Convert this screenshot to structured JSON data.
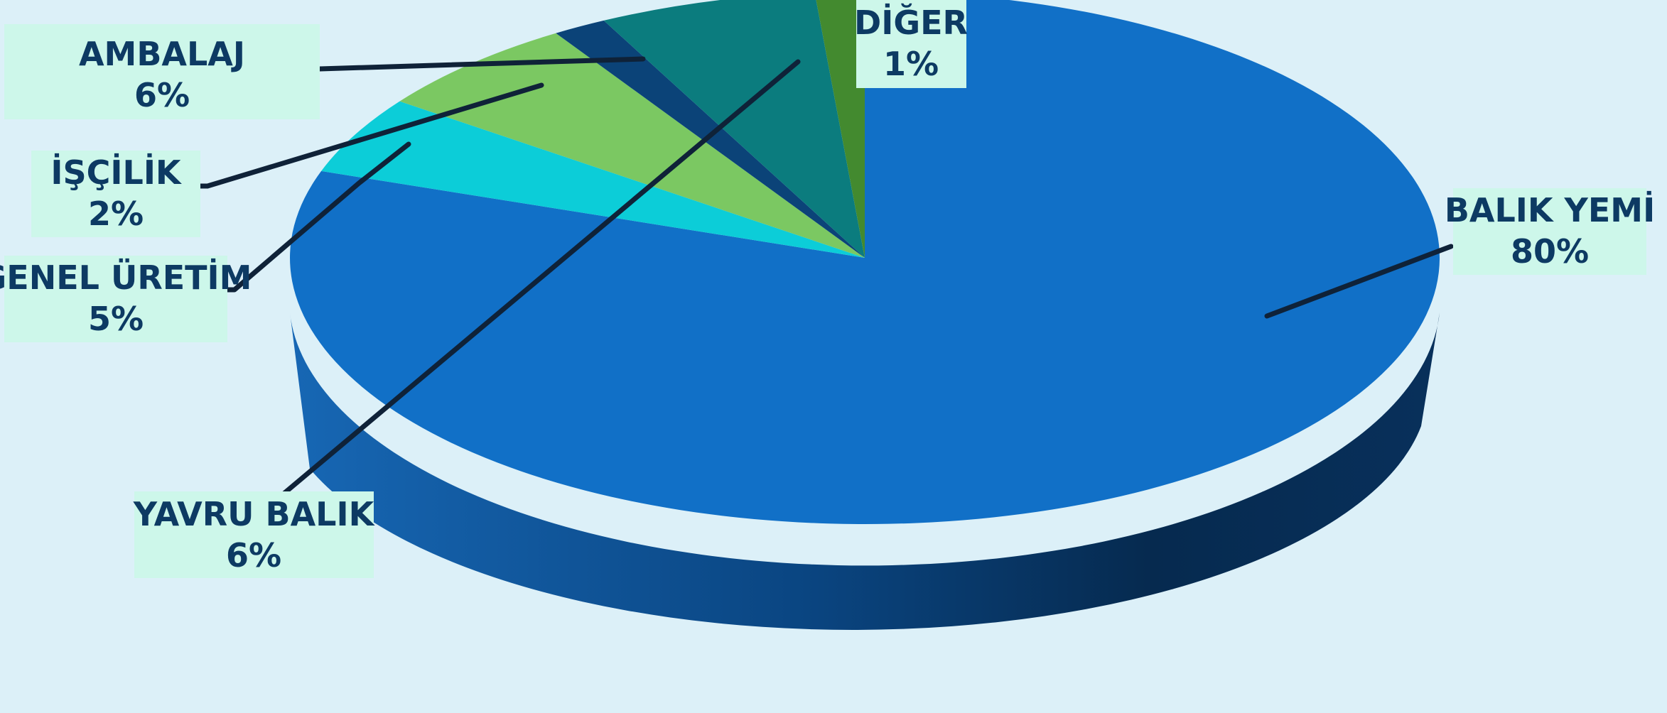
{
  "chart_data": {
    "type": "pie",
    "style": "3d",
    "slices": [
      {
        "label": "BALIK YEMİ",
        "value": 80,
        "display": "80%",
        "color": "#1170c7"
      },
      {
        "label": "GENEL ÜRETİM",
        "value": 5,
        "display": "5%",
        "color": "#0b7c7e"
      },
      {
        "label": "İŞÇİLİK",
        "value": 2,
        "display": "2%",
        "color": "#0b4378"
      },
      {
        "label": "AMBALAJ",
        "value": 6,
        "display": "6%",
        "color": "#7bc862"
      },
      {
        "label": "YAVRU BALIK",
        "value": 6,
        "display": "6%",
        "color": "#0ccdd8"
      },
      {
        "label": "DİĞER",
        "value": 1,
        "display": "1%",
        "color": "#438a2f"
      }
    ],
    "label_style": "callout boxes with leader lines",
    "label_box_color": "#cdf7ea"
  }
}
